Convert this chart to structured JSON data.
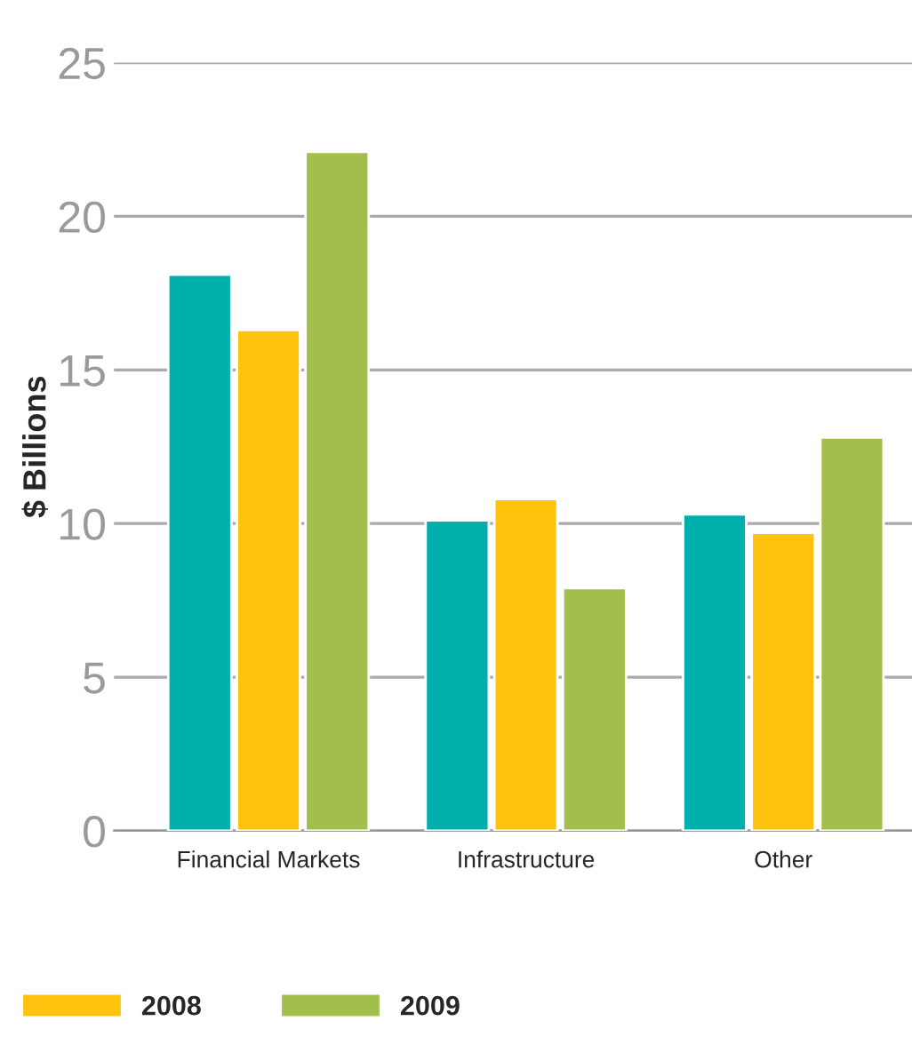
{
  "chart_data": {
    "type": "bar",
    "ylabel": "$ Billions",
    "categories": [
      "Financial Markets",
      "Infrastructure",
      "Other"
    ],
    "series": [
      {
        "color": "#00aeab",
        "values": [
          18.1,
          10.1,
          10.3
        ]
      },
      {
        "name": "2008",
        "color": "#ffc20e",
        "values": [
          16.3,
          10.8,
          9.7
        ]
      },
      {
        "name": "2009",
        "color": "#a2bf4d",
        "values": [
          22.1,
          7.9,
          12.8
        ]
      }
    ],
    "ylim": [
      0,
      25
    ],
    "yticks": [
      0,
      5,
      10,
      15,
      20,
      25
    ],
    "grid": "y",
    "legend": "bottom left"
  }
}
